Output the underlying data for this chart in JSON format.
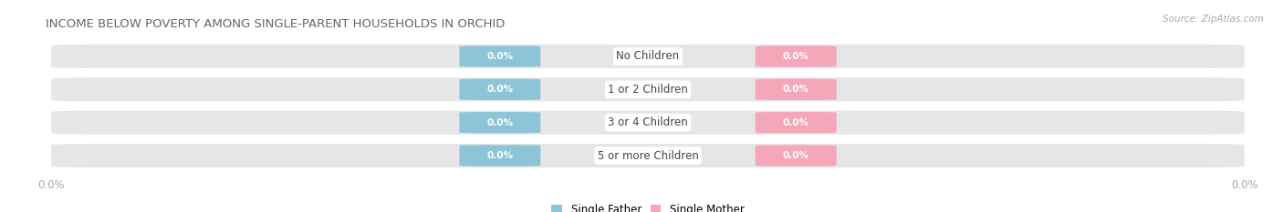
{
  "title": "INCOME BELOW POVERTY AMONG SINGLE-PARENT HOUSEHOLDS IN ORCHID",
  "source": "Source: ZipAtlas.com",
  "categories": [
    "No Children",
    "1 or 2 Children",
    "3 or 4 Children",
    "5 or more Children"
  ],
  "father_values": [
    0.0,
    0.0,
    0.0,
    0.0
  ],
  "mother_values": [
    0.0,
    0.0,
    0.0,
    0.0
  ],
  "father_color": "#8ec4d8",
  "mother_color": "#f4a7b9",
  "bar_bg_color": "#e6e6e6",
  "title_color": "#666666",
  "axis_label_color": "#aaaaaa",
  "source_color": "#aaaaaa",
  "category_color": "#444444",
  "background_color": "#ffffff",
  "figsize": [
    14.06,
    2.33
  ],
  "dpi": 100
}
